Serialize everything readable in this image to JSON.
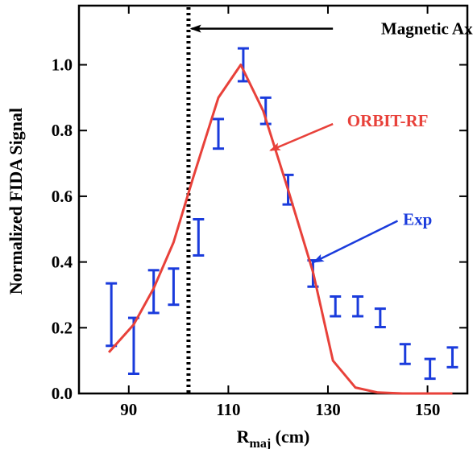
{
  "chart_data": {
    "type": "line",
    "xlabel_main": "R",
    "xlabel_sub": "maj",
    "xlabel_unit": " (cm)",
    "ylabel": "Normalized FIDA Signal",
    "xlim": [
      80,
      158
    ],
    "ylim": [
      0,
      1.18
    ],
    "xticks": [
      90,
      110,
      130,
      150
    ],
    "yticks": [
      0.0,
      0.2,
      0.4,
      0.6,
      0.8,
      1.0
    ],
    "ytick_labels": [
      "0.0",
      "0.2",
      "0.4",
      "0.6",
      "0.8",
      "1.0"
    ],
    "colors": {
      "model": "#e8413a",
      "exp": "#1a3bdc",
      "axis_line": "#000000"
    },
    "series": [
      {
        "name": "ORBIT-RF",
        "kind": "line",
        "x": [
          86,
          91,
          95,
          99,
          103,
          108,
          112.5,
          117,
          122,
          127,
          131,
          135.5,
          140,
          145,
          150,
          155
        ],
        "y": [
          0.125,
          0.21,
          0.32,
          0.46,
          0.66,
          0.9,
          1.0,
          0.86,
          0.62,
          0.37,
          0.1,
          0.018,
          0.003,
          0.0,
          0.0,
          0.0
        ]
      },
      {
        "name": "Exp",
        "kind": "errorbar",
        "x": [
          86.5,
          91,
          95,
          99,
          104,
          108,
          113,
          117.5,
          122,
          127,
          131.5,
          136,
          140.5,
          145.5,
          150.5,
          155
        ],
        "y": [
          0.24,
          0.145,
          0.31,
          0.325,
          0.475,
          0.79,
          1.0,
          0.86,
          0.62,
          0.365,
          0.265,
          0.265,
          0.23,
          0.12,
          0.075,
          0.11
        ],
        "err": [
          0.095,
          0.085,
          0.065,
          0.055,
          0.055,
          0.045,
          0.05,
          0.04,
          0.045,
          0.04,
          0.03,
          0.03,
          0.028,
          0.03,
          0.03,
          0.03
        ]
      }
    ],
    "magnetic_axis_x": 102,
    "annotations": [
      {
        "text": "Magnetic Axis",
        "color": "#000000",
        "text_x": 151,
        "text_y": 1.11,
        "arrow_from_x": 131,
        "arrow_from_y": 1.11,
        "arrow_to_x": 102.6,
        "arrow_to_y": 1.11
      },
      {
        "text": "ORBIT-RF",
        "color": "#e8413a",
        "text_x": 142,
        "text_y": 0.83,
        "arrow_from_x": 131,
        "arrow_from_y": 0.82,
        "arrow_to_x": 118.5,
        "arrow_to_y": 0.74
      },
      {
        "text": "Exp",
        "color": "#1a3bdc",
        "text_x": 148,
        "text_y": 0.53,
        "arrow_from_x": 144,
        "arrow_from_y": 0.525,
        "arrow_to_x": 127.2,
        "arrow_to_y": 0.4
      }
    ]
  }
}
